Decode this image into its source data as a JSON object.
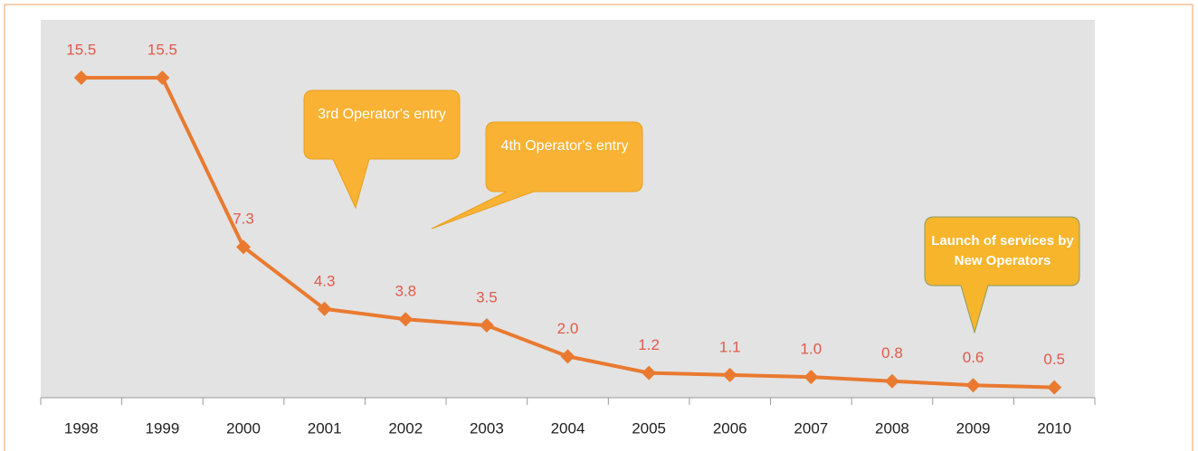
{
  "chart_data": {
    "type": "line",
    "categories": [
      "1998",
      "1999",
      "2000",
      "2001",
      "2002",
      "2003",
      "2004",
      "2005",
      "2006",
      "2007",
      "2008",
      "2009",
      "2010"
    ],
    "series": [
      {
        "color": "#e97a30",
        "values": [
          15.5,
          15.5,
          7.3,
          4.3,
          3.8,
          3.5,
          2.0,
          1.2,
          1.1,
          1.0,
          0.8,
          0.6,
          0.5
        ],
        "value_labels": [
          "15.5",
          "15.5",
          "7.3",
          "4.3",
          "3.8",
          "3.5",
          "2.0",
          "1.2",
          "1.1",
          "1.0",
          "0.8",
          "0.6",
          "0.5"
        ]
      }
    ],
    "ylim": [
      0,
      18.3
    ],
    "annotations": [
      {
        "text": "3rd Operator's entry"
      },
      {
        "text": "4th Operator's entry"
      },
      {
        "text": "Launch of services by New Operators"
      }
    ]
  }
}
